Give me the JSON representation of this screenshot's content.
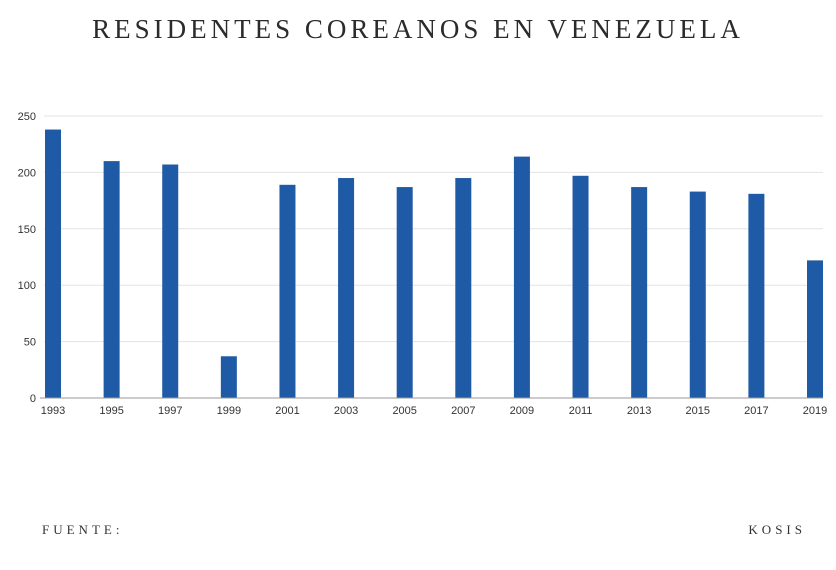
{
  "title": "RESIDENTES COREANOS EN VENEZUELA",
  "footer": {
    "source_label": "FUENTE:",
    "source_value": "KOSIS"
  },
  "colors": {
    "bar": "#1f5aa6",
    "grid": "#e3e3e3",
    "axis": "#999999"
  },
  "chart_data": {
    "type": "bar",
    "title": "RESIDENTES COREANOS EN VENEZUELA",
    "xlabel": "",
    "ylabel": "",
    "ylim": [
      0,
      250
    ],
    "yticks": [
      0,
      50,
      100,
      150,
      200,
      250
    ],
    "grid": true,
    "categories": [
      "1993",
      "1995",
      "1997",
      "1999",
      "2001",
      "2003",
      "2005",
      "2007",
      "2009",
      "2011",
      "2013",
      "2015",
      "2017",
      "2019"
    ],
    "values": [
      238,
      210,
      207,
      37,
      189,
      195,
      187,
      195,
      214,
      197,
      187,
      183,
      181,
      122
    ]
  }
}
